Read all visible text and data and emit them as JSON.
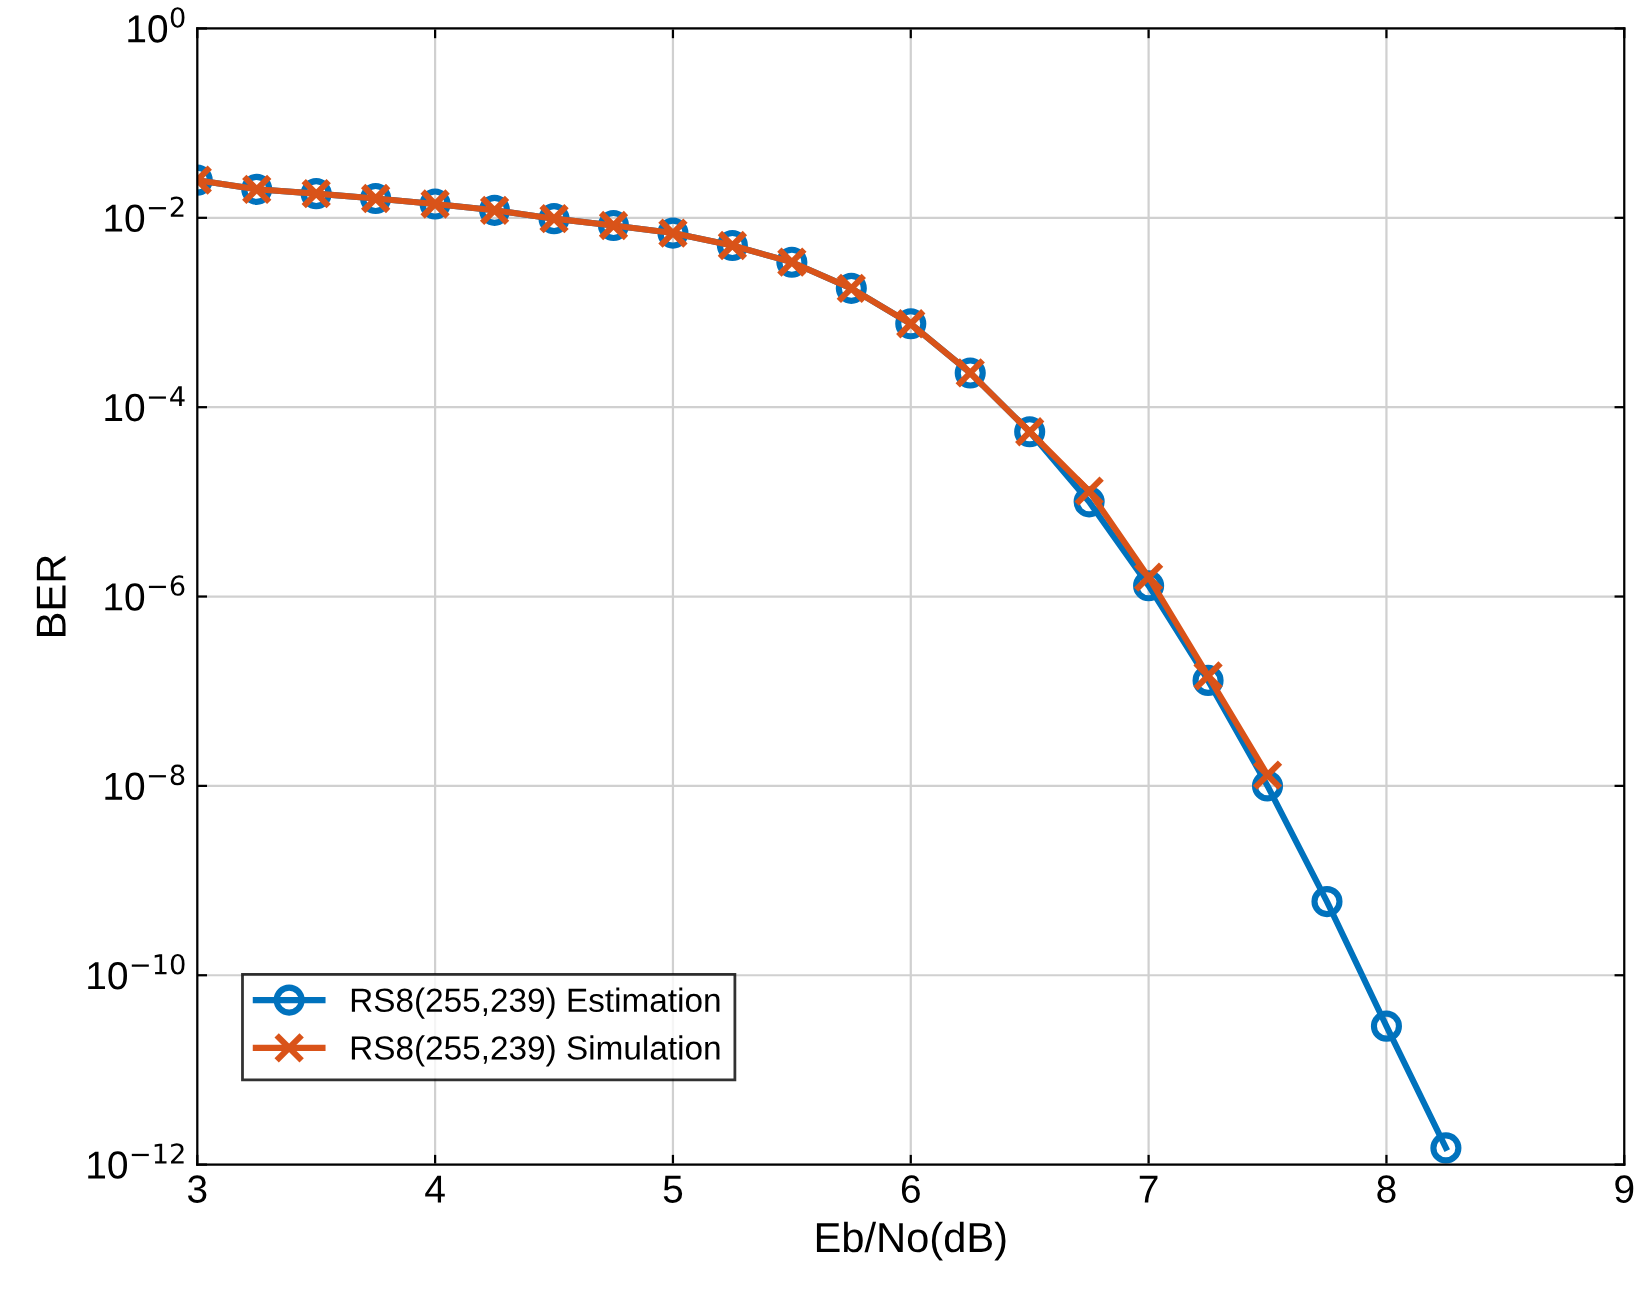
{
  "chart_data": {
    "type": "line",
    "xlabel": "Eb/No(dB)",
    "ylabel": "BER",
    "log": "y",
    "grid": true,
    "legend": "bottom left",
    "line_style": "solid",
    "xlim": [
      3,
      9
    ],
    "xticks": [
      3,
      4,
      5,
      6,
      7,
      8,
      9
    ],
    "ylim": [
      1e-12,
      1
    ],
    "yticks": [
      {
        "value": 1e-12,
        "label": "10$^{−12}$"
      },
      {
        "value": 1e-10,
        "label": "10$^{−10}$"
      },
      {
        "value": 1e-08,
        "label": "10$^{−8}$"
      },
      {
        "value": 1e-06,
        "label": "10$^{−6}$"
      },
      {
        "value": 0.0001,
        "label": "10$^{−4}$"
      },
      {
        "value": 0.01,
        "label": "10$^{−2}$"
      },
      {
        "value": 1,
        "label": "10$^{0}$"
      }
    ],
    "x": [
      3,
      3.25,
      3.5,
      3.75,
      4,
      4.25,
      4.5,
      4.75,
      5,
      5.25,
      5.5,
      5.75,
      6,
      6.25,
      6.5,
      6.75,
      7,
      7.25,
      7.5,
      7.75,
      8,
      8.25
    ],
    "series": [
      {
        "name": "RS8(255,239) Estimation",
        "color": "#0072bd",
        "marker": "circle",
        "values": [
          0.025,
          0.02,
          0.018,
          0.016,
          0.014,
          0.012,
          0.0098,
          0.0083,
          0.0069,
          0.0051,
          0.0034,
          0.0018,
          0.00076,
          0.00023,
          5.5e-05,
          1e-05,
          1.3e-06,
          1.3e-07,
          1e-08,
          6e-10,
          2.9e-11,
          1.5e-12
        ]
      },
      {
        "name": "RS8(255,239) Simulation",
        "color": "#d95319",
        "marker": "cross",
        "x": [
          3,
          3.25,
          3.5,
          3.75,
          4,
          4.25,
          4.5,
          4.75,
          5,
          5.25,
          5.5,
          5.75,
          6,
          6.25,
          6.5,
          6.75,
          7,
          7.25,
          7.5
        ],
        "values": [
          0.025,
          0.02,
          0.018,
          0.016,
          0.014,
          0.012,
          0.0098,
          0.0083,
          0.0069,
          0.0051,
          0.0034,
          0.0018,
          0.00076,
          0.00023,
          5.5e-05,
          1.3e-05,
          1.6e-06,
          1.45e-07,
          1.3e-08
        ]
      }
    ]
  }
}
